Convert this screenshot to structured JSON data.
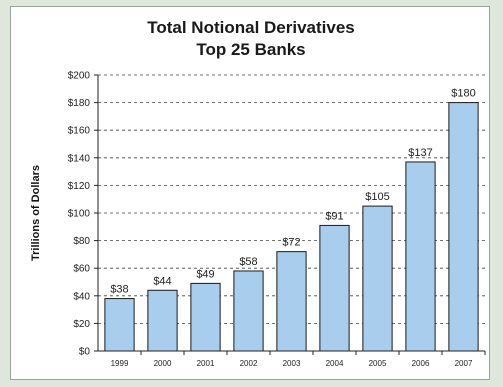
{
  "chart_data": {
    "type": "bar",
    "title_line1": "Total Notional Derivatives",
    "title_line2": "Top 25 Banks",
    "xlabel": "",
    "ylabel": "Trillions of Dollars",
    "categories": [
      "1999",
      "2000",
      "2001",
      "2002",
      "2003",
      "2004",
      "2005",
      "2006",
      "2007"
    ],
    "values": [
      38,
      44,
      49,
      58,
      72,
      91,
      105,
      137,
      180
    ],
    "data_labels": [
      "$38",
      "$44",
      "$49",
      "$58",
      "$72",
      "$91",
      "$105",
      "$137",
      "$180"
    ],
    "ylim": [
      0,
      200
    ],
    "yticks": [
      0,
      20,
      40,
      60,
      80,
      100,
      120,
      140,
      160,
      180,
      200
    ],
    "ytick_labels": [
      "$0",
      "$20",
      "$40",
      "$60",
      "$80",
      "$100",
      "$120",
      "$140",
      "$160",
      "$180",
      "$200"
    ],
    "grid": "horizontal dashed",
    "legend": "none",
    "bar_color": "#a9cdec",
    "bar_edge_color": "#1a1a1a"
  }
}
